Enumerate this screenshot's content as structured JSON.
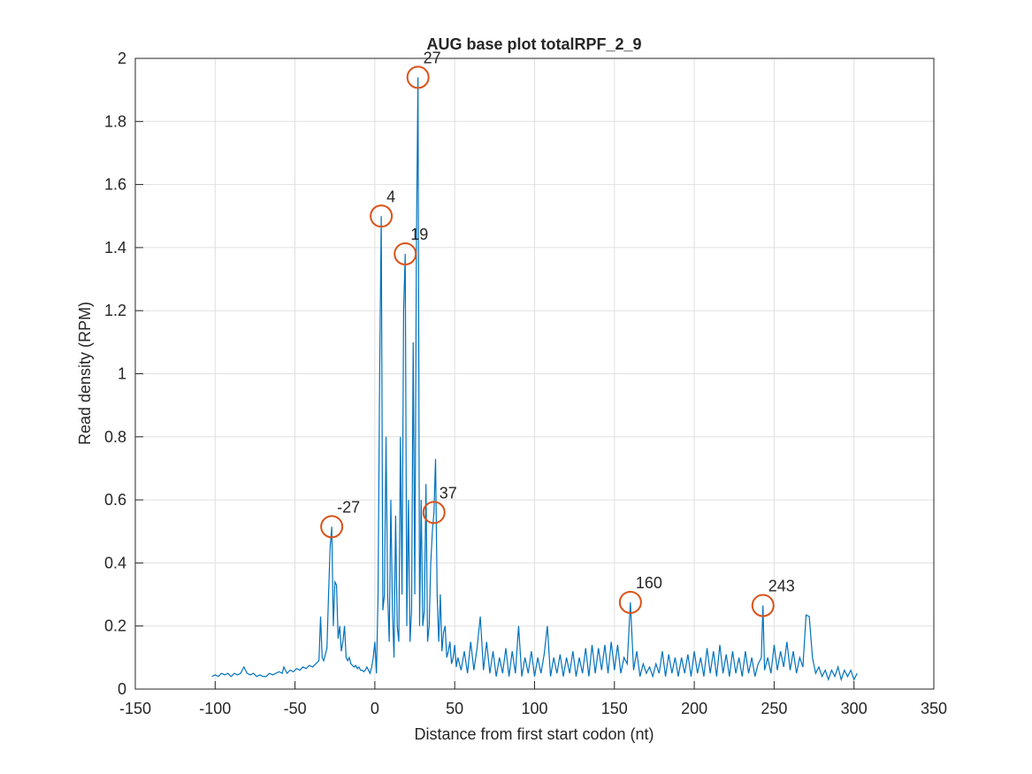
{
  "chart_data": {
    "type": "line",
    "title": "AUG base plot totalRPF_2_9",
    "xlabel": "Distance from first start codon (nt)",
    "ylabel": "Read density (RPM)",
    "xlim": [
      -150,
      350
    ],
    "ylim": [
      0,
      2
    ],
    "xticks": [
      -150,
      -100,
      -50,
      0,
      50,
      100,
      150,
      200,
      250,
      300,
      350
    ],
    "yticks": [
      0,
      0.2,
      0.4,
      0.6,
      0.8,
      1,
      1.2,
      1.4,
      1.6,
      1.8,
      2
    ],
    "grid": true,
    "x": [
      -102,
      -100,
      -98,
      -96,
      -94,
      -92,
      -90,
      -88,
      -86,
      -84,
      -82,
      -80,
      -78,
      -76,
      -74,
      -72,
      -70,
      -68,
      -66,
      -64,
      -62,
      -60,
      -58,
      -57,
      -55,
      -53,
      -51,
      -49,
      -47,
      -45,
      -43,
      -41,
      -39,
      -37,
      -35,
      -34,
      -33,
      -32,
      -31,
      -30,
      -29,
      -28,
      -27,
      -26,
      -25,
      -24,
      -23,
      -22,
      -21,
      -20,
      -19,
      -18,
      -17,
      -16,
      -15,
      -14,
      -13,
      -12,
      -11,
      -10,
      -9,
      -8,
      -7,
      -6,
      -5,
      -4,
      -3,
      -2,
      -1,
      0,
      1,
      2,
      3,
      4,
      5,
      6,
      7,
      8,
      9,
      10,
      11,
      12,
      13,
      14,
      15,
      16,
      17,
      18,
      19,
      20,
      21,
      22,
      23,
      24,
      25,
      26,
      27,
      28,
      29,
      30,
      31,
      32,
      33,
      34,
      35,
      36,
      37,
      38,
      39,
      40,
      41,
      42,
      43,
      44,
      45,
      46,
      47,
      48,
      49,
      50,
      51,
      52,
      54,
      56,
      58,
      60,
      62,
      64,
      66,
      68,
      70,
      72,
      74,
      76,
      78,
      80,
      82,
      84,
      86,
      88,
      90,
      92,
      94,
      96,
      98,
      100,
      102,
      104,
      106,
      108,
      110,
      112,
      114,
      116,
      118,
      120,
      122,
      124,
      126,
      128,
      130,
      132,
      134,
      136,
      138,
      140,
      142,
      144,
      146,
      148,
      150,
      152,
      154,
      156,
      158,
      160,
      162,
      164,
      166,
      168,
      170,
      172,
      174,
      176,
      178,
      180,
      182,
      184,
      186,
      188,
      190,
      192,
      194,
      196,
      198,
      200,
      202,
      204,
      206,
      208,
      210,
      212,
      214,
      216,
      218,
      220,
      222,
      224,
      226,
      228,
      230,
      232,
      234,
      236,
      238,
      240,
      242,
      243,
      244,
      246,
      248,
      250,
      252,
      254,
      256,
      258,
      260,
      262,
      264,
      266,
      268,
      270,
      272,
      274,
      276,
      278,
      280,
      282,
      284,
      286,
      288,
      290,
      292,
      294,
      296,
      298,
      300,
      302
    ],
    "series": [
      {
        "color": "#0072bd",
        "values": [
          0.04,
          0.045,
          0.04,
          0.05,
          0.045,
          0.05,
          0.04,
          0.05,
          0.045,
          0.05,
          0.07,
          0.05,
          0.045,
          0.05,
          0.04,
          0.045,
          0.04,
          0.04,
          0.05,
          0.045,
          0.05,
          0.055,
          0.05,
          0.07,
          0.05,
          0.06,
          0.055,
          0.065,
          0.06,
          0.07,
          0.065,
          0.075,
          0.07,
          0.08,
          0.09,
          0.23,
          0.1,
          0.09,
          0.11,
          0.13,
          0.3,
          0.45,
          0.515,
          0.2,
          0.34,
          0.33,
          0.16,
          0.2,
          0.12,
          0.15,
          0.2,
          0.1,
          0.09,
          0.1,
          0.08,
          0.075,
          0.07,
          0.075,
          0.065,
          0.07,
          0.06,
          0.06,
          0.055,
          0.06,
          0.07,
          0.06,
          0.05,
          0.07,
          0.1,
          0.15,
          0.05,
          0.3,
          1.0,
          1.5,
          0.25,
          0.3,
          0.8,
          0.3,
          0.15,
          0.6,
          0.25,
          0.1,
          0.55,
          0.2,
          0.15,
          0.8,
          0.3,
          1.2,
          1.38,
          0.2,
          0.6,
          0.15,
          0.25,
          1.1,
          0.3,
          1.4,
          1.94,
          0.2,
          0.6,
          0.2,
          0.25,
          0.65,
          0.15,
          0.2,
          0.4,
          0.5,
          0.56,
          0.73,
          0.3,
          0.15,
          0.3,
          0.12,
          0.18,
          0.2,
          0.1,
          0.12,
          0.15,
          0.08,
          0.1,
          0.14,
          0.07,
          0.1,
          0.06,
          0.12,
          0.05,
          0.15,
          0.06,
          0.13,
          0.23,
          0.06,
          0.15,
          0.05,
          0.12,
          0.04,
          0.1,
          0.05,
          0.13,
          0.04,
          0.12,
          0.05,
          0.2,
          0.04,
          0.1,
          0.05,
          0.12,
          0.04,
          0.1,
          0.05,
          0.11,
          0.2,
          0.04,
          0.1,
          0.05,
          0.11,
          0.04,
          0.1,
          0.05,
          0.12,
          0.04,
          0.1,
          0.05,
          0.13,
          0.04,
          0.14,
          0.05,
          0.13,
          0.06,
          0.14,
          0.05,
          0.15,
          0.06,
          0.14,
          0.05,
          0.1,
          0.08,
          0.275,
          0.06,
          0.12,
          0.04,
          0.08,
          0.05,
          0.07,
          0.04,
          0.08,
          0.05,
          0.12,
          0.04,
          0.11,
          0.05,
          0.1,
          0.04,
          0.1,
          0.05,
          0.11,
          0.04,
          0.12,
          0.05,
          0.1,
          0.04,
          0.13,
          0.05,
          0.12,
          0.04,
          0.14,
          0.05,
          0.11,
          0.04,
          0.12,
          0.05,
          0.1,
          0.04,
          0.12,
          0.05,
          0.1,
          0.04,
          0.08,
          0.1,
          0.265,
          0.06,
          0.1,
          0.05,
          0.14,
          0.06,
          0.12,
          0.07,
          0.15,
          0.06,
          0.12,
          0.05,
          0.1,
          0.07,
          0.235,
          0.23,
          0.1,
          0.05,
          0.07,
          0.04,
          0.06,
          0.03,
          0.06,
          0.04,
          0.07,
          0.03,
          0.06,
          0.04,
          0.06,
          0.03,
          0.05
        ]
      }
    ],
    "peaks_color": "#d95319",
    "peaks": [
      {
        "x": -27,
        "y": 0.515
      },
      {
        "x": 4,
        "y": 1.5
      },
      {
        "x": 19,
        "y": 1.38
      },
      {
        "x": 27,
        "y": 1.94
      },
      {
        "x": 37,
        "y": 0.56
      },
      {
        "x": 160,
        "y": 0.275
      },
      {
        "x": 243,
        "y": 0.265
      }
    ]
  }
}
